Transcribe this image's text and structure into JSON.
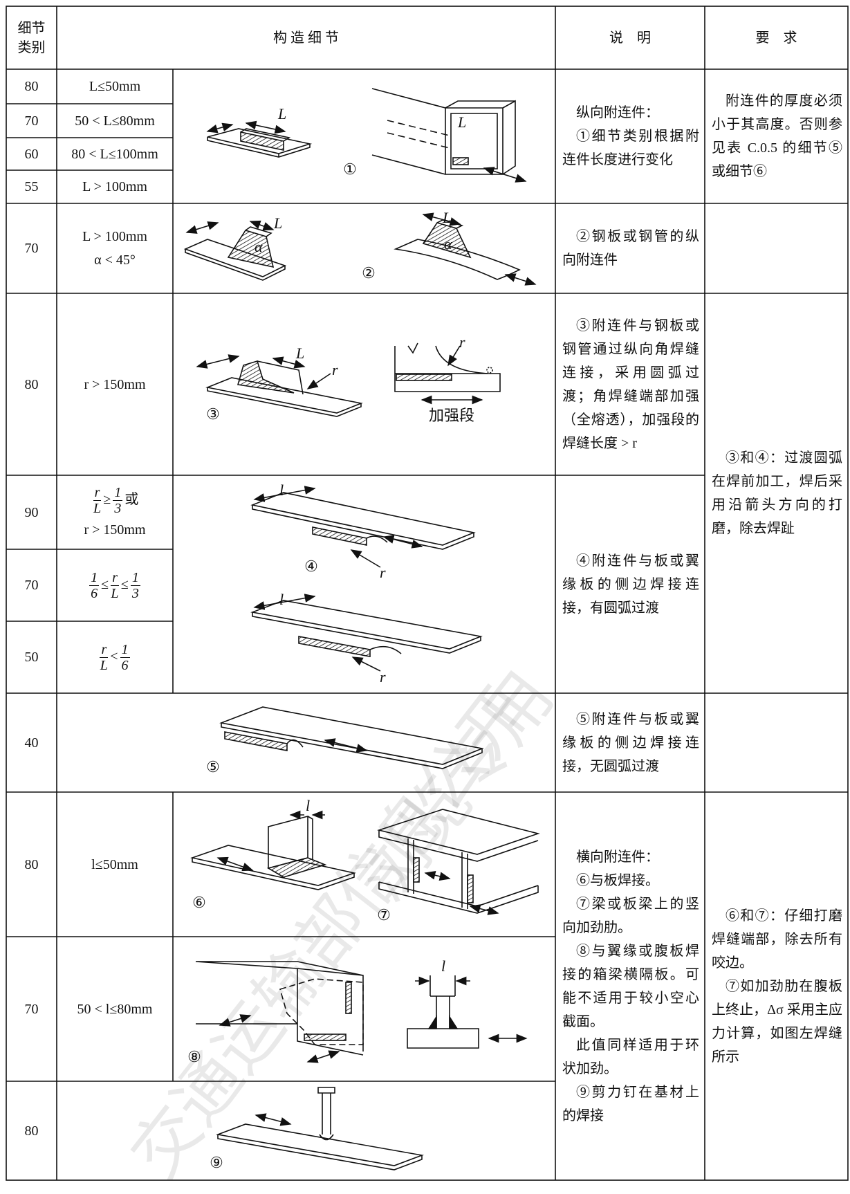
{
  "header": {
    "category": "细节类别",
    "detail": "构 造 细 节",
    "description": "说　明",
    "requirement": "要　求"
  },
  "rows": [
    {
      "category": 80,
      "condition": "L≤50mm"
    },
    {
      "category": 70,
      "condition": "50 < L≤80mm"
    },
    {
      "category": 60,
      "condition": "80 < L≤100mm"
    },
    {
      "category": 55,
      "condition": "L > 100mm"
    },
    {
      "category": 70,
      "condition": "L > 100mm",
      "condition_line2": "α < 45°"
    },
    {
      "category": 80,
      "condition": "r > 150mm"
    },
    {
      "category": 90,
      "condition": [
        {
          "num": "r",
          "den": "L"
        },
        "≥",
        {
          "num": "1",
          "den": "3"
        },
        "或"
      ],
      "condition_line2": "r > 150mm"
    },
    {
      "category": 70,
      "condition": [
        {
          "num": "1",
          "den": "6"
        },
        "≤",
        {
          "num": "r",
          "den": "L"
        },
        "≤",
        {
          "num": "1",
          "den": "3"
        }
      ]
    },
    {
      "category": 50,
      "condition": [
        {
          "num": "r",
          "den": "L"
        },
        "<",
        {
          "num": "1",
          "den": "6"
        }
      ]
    },
    {
      "category": 40
    },
    {
      "category": 80,
      "condition": "l≤50mm"
    },
    {
      "category": 70,
      "condition": "50 < l≤80mm"
    },
    {
      "category": 80
    }
  ],
  "descriptions": [
    [
      "纵向附连件：",
      "①细节类别根据附连件长度进行变化"
    ],
    [
      "②钢板或钢管的纵向附连件"
    ],
    [
      "③附连件与钢板或钢管通过纵向角焊缝连接，采用圆弧过渡；角焊缝端部加强（全熔透），加强段的焊缝长度 > r"
    ],
    [
      "④附连件与板或翼缘板的侧边焊接连接，有圆弧过渡"
    ],
    [
      "⑤附连件与板或翼缘板的侧边焊接连接，无圆弧过渡"
    ],
    [
      "横向附连件：",
      "⑥与板焊接。",
      "⑦梁或板梁上的竖向加劲肋。",
      "⑧与翼缘或腹板焊接的箱梁横隔板。可能不适用于较小空心截面。",
      "此值同样适用于环状加劲。",
      "⑨剪力钉在基材上的焊接"
    ]
  ],
  "requirements": [
    [
      "附连件的厚度必须小于其高度。否则参见表 C.0.5 的细节⑤或细节⑥"
    ],
    [
      "③和④：过渡圆弧在焊前加工，焊后采用沿箭头方向的打磨，除去焊趾"
    ],
    [
      "⑥和⑦：仔细打磨焊缝端部，除去所有咬边。",
      "⑦如加劲肋在腹板上终止，Δσ 采用主应力计算，如图左焊缝所示"
    ]
  ],
  "figures": [
    {
      "number": "①",
      "labels": [
        "L",
        "L"
      ]
    },
    {
      "number": "②",
      "labels": [
        "L",
        "α",
        "L",
        "α"
      ]
    },
    {
      "number": "③",
      "labels": [
        "L",
        "r",
        "r",
        "加强段"
      ]
    },
    {
      "number": "④",
      "labels": [
        "l",
        "r",
        "l",
        "r"
      ]
    },
    {
      "number": "⑤"
    },
    {
      "number": "⑥",
      "labels": [
        "l"
      ]
    },
    {
      "number": "⑦"
    },
    {
      "number": "⑧",
      "labels": [
        "l"
      ]
    },
    {
      "number": "⑨"
    }
  ],
  "watermark": [
    "交通运输部信息公开",
    "浏览专用"
  ]
}
